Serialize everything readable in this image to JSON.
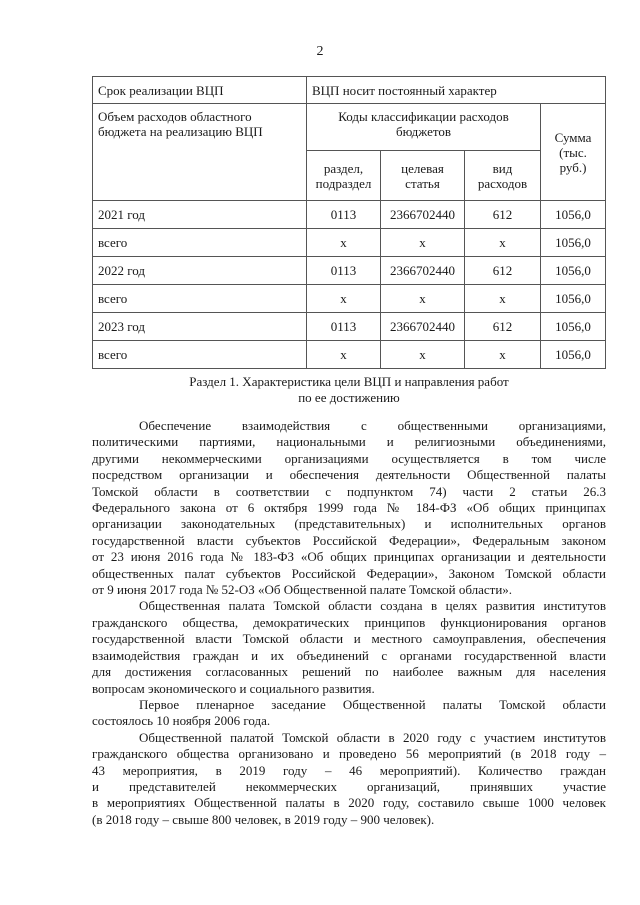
{
  "page_number": "2",
  "table": {
    "term_label": "Срок реализации ВЦП",
    "term_value": "ВЦП носит постоянный характер",
    "volume_label": "Объем расходов областного бюджета на реализацию ВЦП",
    "codes_header": "Коды классификации расходов бюджетов",
    "sum_header": "Сумма (тыс. руб.)",
    "col_section": "раздел, подраздел",
    "col_target": "целевая статья",
    "col_type": "вид расходов",
    "rows": [
      {
        "label": "2021 год",
        "section": "0113",
        "target": "2366702440",
        "type": "612",
        "sum": "1056,0"
      },
      {
        "label": "всего",
        "section": "х",
        "target": "х",
        "type": "х",
        "sum": "1056,0"
      },
      {
        "label": "2022 год",
        "section": "0113",
        "target": "2366702440",
        "type": "612",
        "sum": "1056,0"
      },
      {
        "label": "всего",
        "section": "х",
        "target": "х",
        "type": "х",
        "sum": "1056,0"
      },
      {
        "label": "2023 год",
        "section": "0113",
        "target": "2366702440",
        "type": "612",
        "sum": "1056,0"
      },
      {
        "label": "всего",
        "section": "х",
        "target": "х",
        "type": "х",
        "sum": "1056,0"
      }
    ]
  },
  "section_heading": [
    "Раздел 1. Характеристика цели ВЦП и направления работ",
    "по ее достижению"
  ],
  "paragraphs": [
    [
      "Обеспечение взаимодействия с общественными организациями,",
      "политическими партиями, национальными и религиозными объединениями,",
      "другими некоммерческими организациями осуществляется в том числе",
      "посредством организации и обеспечения деятельности Общественной палаты",
      "Томской области в соответствии с подпунктом 74) части 2 статьи 26.3",
      "Федерального закона от 6 октября 1999 года № 184-ФЗ «Об общих принципах",
      "организации законодательных (представительных) и исполнительных органов",
      "государственной власти субъектов Российской Федерации», Федеральным законом",
      "от 23 июня 2016 года № 183-ФЗ «Об общих принципах организации и деятельности",
      "общественных палат субъектов Российской Федерации», Законом Томской области",
      "от 9 июня 2017 года № 52-ОЗ «Об Общественной палате Томской области»."
    ],
    [
      "Общественная палата Томской области создана в целях развития институтов",
      "гражданского общества, демократических принципов функционирования органов",
      "государственной власти Томской области и местного самоуправления, обеспечения",
      "взаимодействия граждан и их объединений с органами государственной власти",
      "для достижения согласованных решений по наиболее важным для населения",
      "вопросам экономического и социального развития."
    ],
    [
      "Первое пленарное заседание Общественной палаты Томской области",
      "состоялось 10 ноября 2006 года."
    ],
    [
      "Общественной палатой Томской области в 2020 году с участием институтов",
      "гражданского общества организовано и проведено 56 мероприятий (в 2018 году –",
      "43 мероприятия, в 2019 году – 46 мероприятий). Количество граждан",
      "и представителей некоммерческих организаций, принявших участие",
      "в мероприятиях Общественной палаты в 2020 году, составило свыше 1000 человек",
      "(в 2018 году – свыше 800 человек, в 2019 году – 900 человек)."
    ]
  ]
}
